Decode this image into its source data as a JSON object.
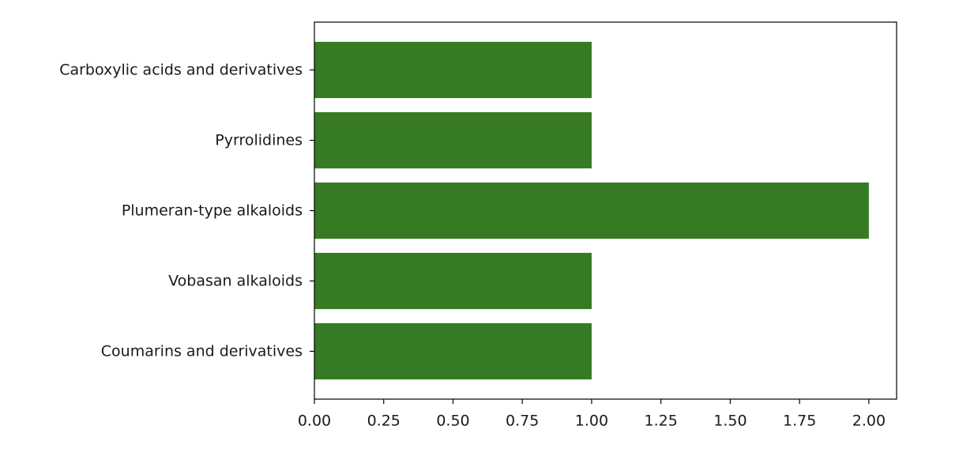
{
  "chart_data": {
    "type": "bar",
    "orientation": "horizontal",
    "title": "",
    "xlabel": "",
    "ylabel": "",
    "categories": [
      "Coumarins and derivatives",
      "Vobasan alkaloids",
      "Plumeran-type alkaloids",
      "Pyrrolidines",
      "Carboxylic acids and derivatives"
    ],
    "values": [
      1,
      1,
      2,
      1,
      1
    ],
    "xlim": [
      0,
      2.1
    ],
    "xticks": [
      0,
      0.25,
      0.5,
      0.75,
      1.0,
      1.25,
      1.5,
      1.75,
      2.0
    ],
    "xtick_labels": [
      "0.00",
      "0.25",
      "0.50",
      "0.75",
      "1.00",
      "1.25",
      "1.50",
      "1.75",
      "2.00"
    ],
    "grid": false,
    "legend": "none",
    "bar_color": "#367b23"
  }
}
